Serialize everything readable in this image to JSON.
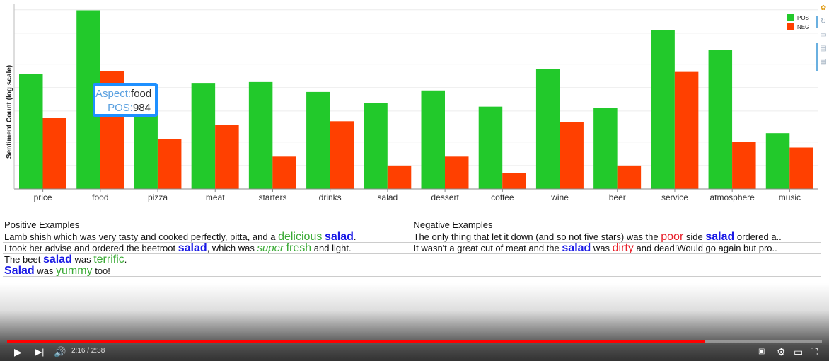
{
  "chart_data": {
    "type": "bar",
    "ylabel": "Sentiment Count (log scale)",
    "yscale": "log",
    "categories": [
      "price",
      "food",
      "pizza",
      "meat",
      "starters",
      "drinks",
      "salad",
      "dessert",
      "coffee",
      "wine",
      "beer",
      "service",
      "atmosphere",
      "music"
    ],
    "series": [
      {
        "name": "POS",
        "color": "#22c92b",
        "values": [
          150,
          984,
          80,
          115,
          118,
          88,
          64,
          92,
          57,
          175,
          55,
          550,
          305,
          26
        ]
      },
      {
        "name": "NEG",
        "color": "#ff4000",
        "values": [
          41,
          164,
          22,
          33,
          13,
          37,
          10,
          13,
          8,
          36,
          10,
          159,
          20,
          17
        ]
      }
    ],
    "legend_position": "top-right",
    "grid": "horizontal"
  },
  "tooltip": {
    "aspect_label": "Aspect:",
    "aspect_value": "food",
    "pos_label": "POS:",
    "pos_value": "984"
  },
  "toolbar": {
    "icons": [
      "color-wheel-icon",
      "reset-icon",
      "save-icon",
      "comment-icon",
      "comment-icon"
    ]
  },
  "examples": {
    "positive_header": "Positive Examples",
    "negative_header": "Negative Examples",
    "positive": [
      [
        {
          "t": "Lamb shish which was very tasty and cooked perfectly, pitta, and a "
        },
        {
          "t": "delicious",
          "c": "pos"
        },
        {
          "t": " "
        },
        {
          "t": "salad",
          "c": "asp"
        },
        {
          "t": "."
        }
      ],
      [
        {
          "t": "I took her advise and ordered the beetroot "
        },
        {
          "t": "salad",
          "c": "asp"
        },
        {
          "t": ", which was "
        },
        {
          "t": "super",
          "c": "pos-i"
        },
        {
          "t": " "
        },
        {
          "t": "fresh",
          "c": "pos"
        },
        {
          "t": " and light."
        }
      ],
      [
        {
          "t": "The beet "
        },
        {
          "t": "salad",
          "c": "asp"
        },
        {
          "t": " was "
        },
        {
          "t": "terrific",
          "c": "pos"
        },
        {
          "t": "."
        }
      ],
      [
        {
          "t": "Salad",
          "c": "asp"
        },
        {
          "t": " was "
        },
        {
          "t": "yummy",
          "c": "pos"
        },
        {
          "t": " too!"
        }
      ]
    ],
    "negative": [
      [
        {
          "t": "The only thing that let it down (and so not five stars) was the "
        },
        {
          "t": "poor",
          "c": "neg"
        },
        {
          "t": " side "
        },
        {
          "t": "salad",
          "c": "asp"
        },
        {
          "t": " ordered a.."
        }
      ],
      [
        {
          "t": "It wasn't a great cut of meat and the "
        },
        {
          "t": "salad",
          "c": "asp"
        },
        {
          "t": " was "
        },
        {
          "t": "dirty",
          "c": "neg"
        },
        {
          "t": " and dead!Would go again but pro.."
        }
      ],
      [],
      []
    ]
  },
  "player": {
    "time": "2:16 / 2:38",
    "progress": 0.857
  }
}
